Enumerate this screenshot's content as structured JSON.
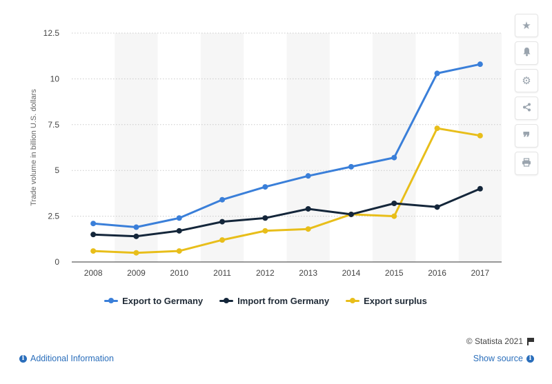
{
  "chart_data": {
    "type": "line",
    "categories": [
      "2008",
      "2009",
      "2010",
      "2011",
      "2012",
      "2013",
      "2014",
      "2015",
      "2016",
      "2017"
    ],
    "series": [
      {
        "name": "Export to Germany",
        "color": "#3a7fd9",
        "values": [
          2.1,
          1.9,
          2.4,
          3.4,
          4.1,
          4.7,
          5.2,
          5.7,
          10.3,
          10.8
        ]
      },
      {
        "name": "Import from Germany",
        "color": "#14263a",
        "values": [
          1.5,
          1.4,
          1.7,
          2.2,
          2.4,
          2.9,
          2.6,
          3.2,
          3.0,
          4.0
        ]
      },
      {
        "name": "Export surplus",
        "color": "#e8be1a",
        "values": [
          0.6,
          0.5,
          0.6,
          1.2,
          1.7,
          1.8,
          2.6,
          2.5,
          7.3,
          6.9
        ]
      }
    ],
    "yticks": [
      "0",
      "2.5",
      "5",
      "7.5",
      "10",
      "12.5"
    ],
    "ylim": [
      0,
      12.5
    ],
    "ylabel": "Trade volume in billion U.S. dollars",
    "xlabel": "",
    "title": "",
    "grid": true,
    "legend": "bottom"
  },
  "toolbar": {
    "icons": [
      "star-icon",
      "bell-icon",
      "gear-icon",
      "share-icon",
      "quote-icon",
      "print-icon"
    ]
  },
  "footer": {
    "credit": "© Statista 2021",
    "additional_info": "Additional Information",
    "show_source": "Show source"
  }
}
